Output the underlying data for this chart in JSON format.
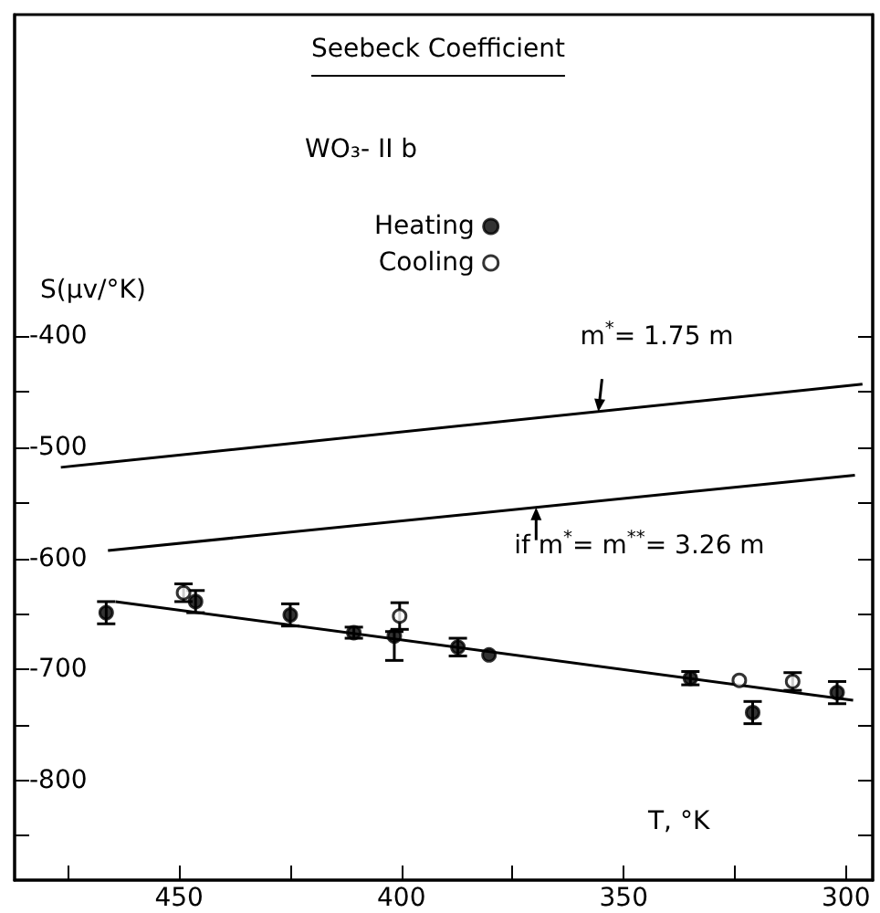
{
  "chart_data": {
    "type": "scatter",
    "title": "Seebeck Coefficient",
    "subtitle": "WO₃- II b",
    "xlabel": "T, °K",
    "ylabel": "S(μv/°K)",
    "xlim": [
      487,
      294
    ],
    "xticks": [
      {
        "value": 475,
        "label": null
      },
      450,
      {
        "value": 425,
        "label": null
      },
      400,
      {
        "value": 375,
        "label": null
      },
      350,
      {
        "value": 325,
        "label": null
      },
      300
    ],
    "ylim": [
      -890,
      -110
    ],
    "yticks": [
      -400,
      {
        "value": -450,
        "label": null
      },
      -500,
      {
        "value": -550,
        "label": null
      },
      -600,
      {
        "value": -650,
        "label": null
      },
      -700,
      {
        "value": -750,
        "label": null
      },
      -800,
      {
        "value": -850,
        "label": null
      }
    ],
    "marker": "circle",
    "grid": false,
    "legend": "top",
    "series": [
      {
        "name": "Heating",
        "color": "#000000",
        "x": [
          466.4,
          446.3,
          425,
          410.7,
          401.6,
          387.3,
          380.3,
          335,
          321,
          302
        ],
        "values": [
          -649,
          -639,
          -651,
          -667,
          -670,
          -680,
          -687,
          -708,
          -739,
          -721
        ],
        "errors": [
          10,
          10,
          10,
          5,
          [
            -692,
            -666
          ],
          8,
          null,
          6,
          10,
          10
        ]
      },
      {
        "name": "Cooling",
        "color": "#ffffff",
        "x": [
          449,
          400.4,
          324,
          312
        ],
        "values": [
          -631,
          -652,
          -710,
          -711
        ],
        "errors": [
          8,
          12,
          null,
          8
        ]
      },
      {
        "type": "line",
        "marker": "none",
        "color": "#000000",
        "x": [
          476.6,
          296.3
        ],
        "values": [
          -518,
          -443
        ]
      },
      {
        "type": "line",
        "marker": "none",
        "color": "#000000",
        "x": [
          466,
          298
        ],
        "values": [
          -593,
          -525
        ]
      },
      {
        "type": "line",
        "marker": "none",
        "color": "#000000",
        "x": [
          464.3,
          298.4
        ],
        "values": [
          -639,
          -728
        ]
      }
    ],
    "annotations": [
      {
        "text": "m$^{*}$= 1.75 m",
        "x": 355.7,
        "y": -468
      },
      {
        "text": "if m$^{*}$= m$^{**}$= 3.26 m",
        "x": 369.7,
        "y": -554
      }
    ]
  }
}
